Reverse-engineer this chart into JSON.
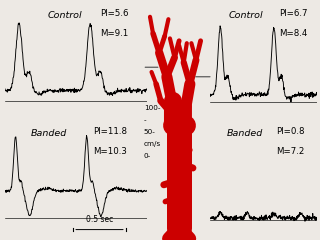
{
  "bg_color": "#ede9e4",
  "panel_bg": "#ffffff",
  "left_top_label": "Control",
  "left_top_pi": "PI=5.6",
  "left_top_m": "M=9.1",
  "left_bot_label": "Banded",
  "left_bot_pi": "PI=11.8",
  "left_bot_m": "M=10.3",
  "right_top_label": "Control",
  "right_top_pi": "PI=6.7",
  "right_top_m": "M=8.4",
  "right_bot_label": "Banded",
  "right_bot_pi": "PI=0.8",
  "right_bot_m": "M=7.2",
  "time_label": "0.5 sec",
  "aorta_color": "#cc0000",
  "panel_border_color": "#888888",
  "arrow_color": "#555555",
  "scale_100": "100-",
  "scale_dash": "-",
  "scale_50": "50-",
  "scale_cms": "cm/s",
  "scale_0": "0-"
}
